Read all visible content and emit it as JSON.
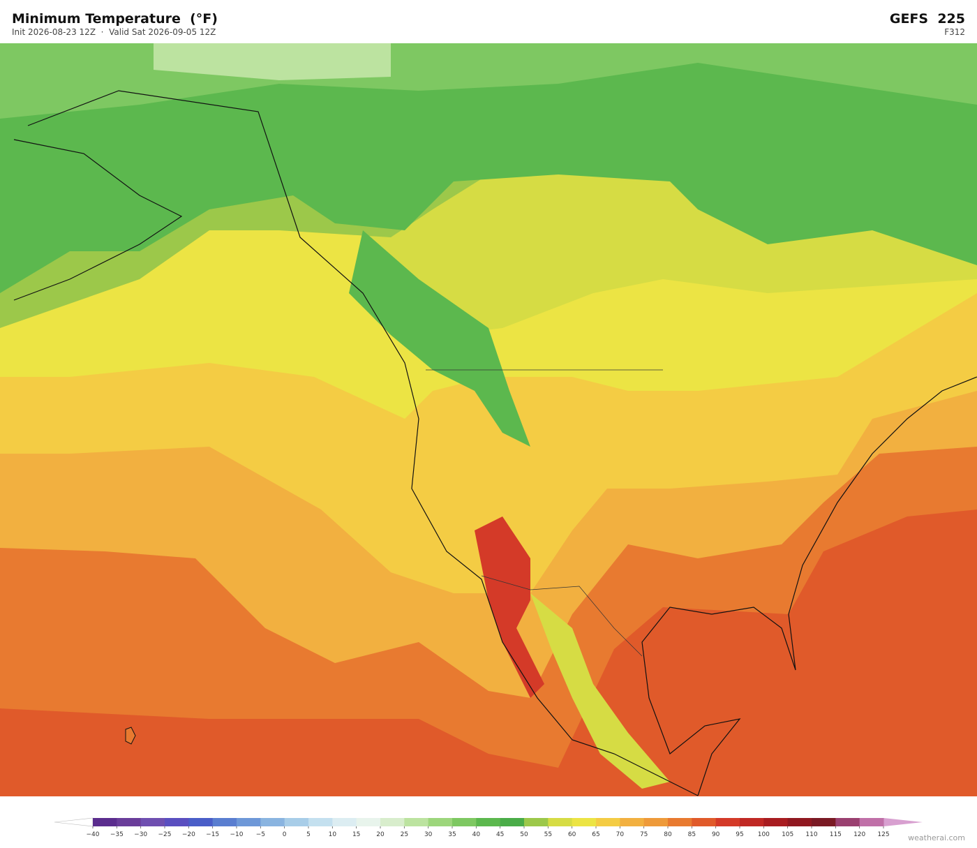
{
  "header": {
    "title": "Minimum Temperature  (°F)",
    "subtitle": "Init 2026-08-23 12Z  ·  Valid Sat 2026-09-05 12Z",
    "model": "GEFS  225",
    "forecast_hour": "F312"
  },
  "colorbar": {
    "ticks": [
      {
        "value": -40,
        "label": "−40"
      },
      {
        "value": -35,
        "label": "−35"
      },
      {
        "value": -30,
        "label": "−30"
      },
      {
        "value": -25,
        "label": "−25"
      },
      {
        "value": -20,
        "label": "−20"
      },
      {
        "value": -15,
        "label": "−15"
      },
      {
        "value": -10,
        "label": "−10"
      },
      {
        "value": -5,
        "label": "−5"
      },
      0,
      5,
      10,
      15,
      20,
      25,
      30,
      35,
      40,
      45,
      50,
      55,
      60,
      65,
      70,
      75,
      80,
      85,
      90,
      95,
      100,
      105,
      110,
      115,
      120,
      125
    ],
    "colors": [
      "#5b2d8e",
      "#6a3d9a",
      "#6f4fb0",
      "#5a4fc0",
      "#4a5ec8",
      "#5a7ed0",
      "#6e98d8",
      "#8ab4e0",
      "#a8cde8",
      "#c4e0ef",
      "#dcedf2",
      "#e8f4ec",
      "#d8edcc",
      "#bce3a0",
      "#9dd67c",
      "#7ec862",
      "#5cb84e",
      "#4aac48",
      "#9cc84a",
      "#d6dc44",
      "#ece444",
      "#f4cc44",
      "#f2b040",
      "#ee9a3a",
      "#e87a30",
      "#e05a2a",
      "#d43a28",
      "#c02824",
      "#a81c20",
      "#901820",
      "#7a1a24",
      "#9a4070",
      "#c070a8"
    ],
    "under_color": "#ffffff",
    "over_color": "#d8a0d0"
  },
  "footer": {
    "credit": "weatherai.com"
  }
}
